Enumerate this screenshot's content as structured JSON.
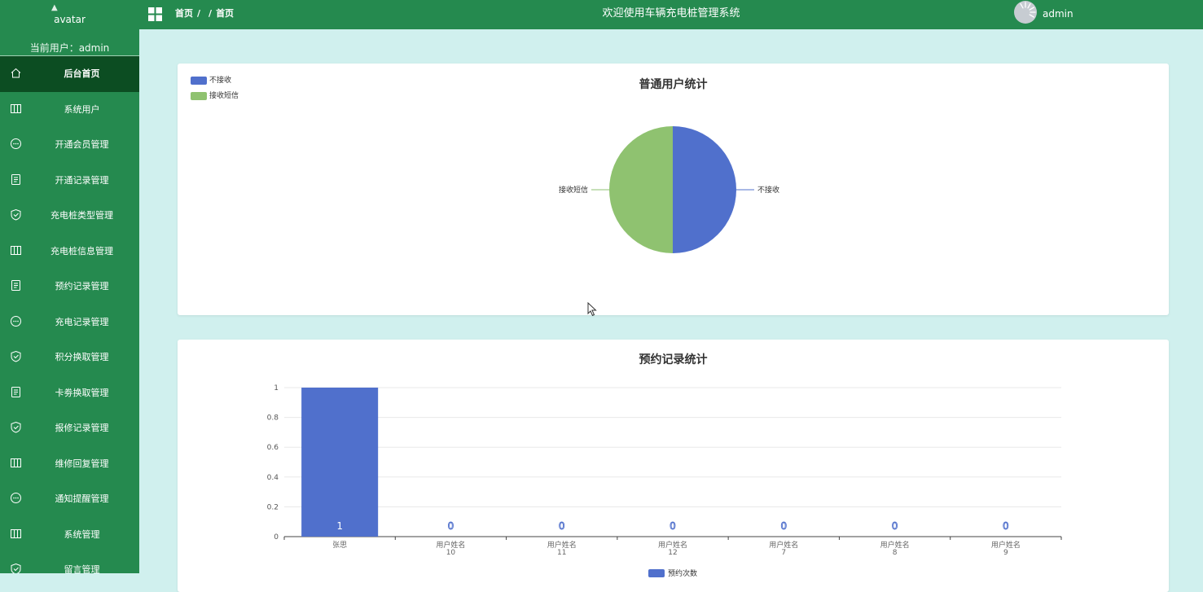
{
  "sidebar": {
    "avatar_alt": "avatar",
    "current_user": "当前用户：admin",
    "items": [
      {
        "label": "后台首页",
        "icon": "home-icon",
        "active": true
      },
      {
        "label": "系统用户",
        "icon": "columns-icon"
      },
      {
        "label": "开通会员管理",
        "icon": "chat-icon"
      },
      {
        "label": "开通记录管理",
        "icon": "document-icon"
      },
      {
        "label": "充电桩类型管理",
        "icon": "shield-check-icon"
      },
      {
        "label": "充电桩信息管理",
        "icon": "columns-icon"
      },
      {
        "label": "预约记录管理",
        "icon": "document-icon"
      },
      {
        "label": "充电记录管理",
        "icon": "chat-icon"
      },
      {
        "label": "积分换取管理",
        "icon": "shield-check-icon"
      },
      {
        "label": "卡劵换取管理",
        "icon": "document-icon"
      },
      {
        "label": "报修记录管理",
        "icon": "shield-check-icon"
      },
      {
        "label": "维修回复管理",
        "icon": "columns-icon"
      },
      {
        "label": "通知提醒管理",
        "icon": "chat-icon"
      },
      {
        "label": "系统管理",
        "icon": "columns-icon"
      },
      {
        "label": "留言管理",
        "icon": "shield-check-icon"
      }
    ]
  },
  "header": {
    "breadcrumb": [
      "首页",
      "",
      "首页"
    ],
    "separator": "/",
    "title": "欢迎使用车辆充电桩管理系统",
    "username": "admin"
  },
  "colors": {
    "primary_green": "#258a4f",
    "active_item": "#0c4d22",
    "content_bg": "#d0f0ee",
    "blue": "#5070cc",
    "green": "#8fc270"
  },
  "chart_data": [
    {
      "type": "pie",
      "title": "普通用户统计",
      "legend_position": "top-left",
      "slices": [
        {
          "name": "不接收",
          "value": 1,
          "color": "#5070cc"
        },
        {
          "name": "接收短信",
          "value": 1,
          "color": "#8fc270"
        }
      ]
    },
    {
      "type": "bar",
      "title": "预约记录统计",
      "categories": [
        "张思",
        "用户姓名10",
        "用户姓名11",
        "用户姓名12",
        "用户姓名7",
        "用户姓名8",
        "用户姓名9"
      ],
      "category_lines": [
        [
          "张思"
        ],
        [
          "用户姓名",
          "10"
        ],
        [
          "用户姓名",
          "11"
        ],
        [
          "用户姓名",
          "12"
        ],
        [
          "用户姓名",
          "7"
        ],
        [
          "用户姓名",
          "8"
        ],
        [
          "用户姓名",
          "9"
        ]
      ],
      "series": [
        {
          "name": "预约次数",
          "values": [
            1,
            0,
            0,
            0,
            0,
            0,
            0
          ],
          "color": "#5070cc"
        }
      ],
      "y_ticks": [
        "0",
        "0.2",
        "0.4",
        "0.6",
        "0.8",
        "1"
      ],
      "ylim": [
        0,
        1
      ],
      "grid": true,
      "legend_position": "bottom-center"
    }
  ]
}
